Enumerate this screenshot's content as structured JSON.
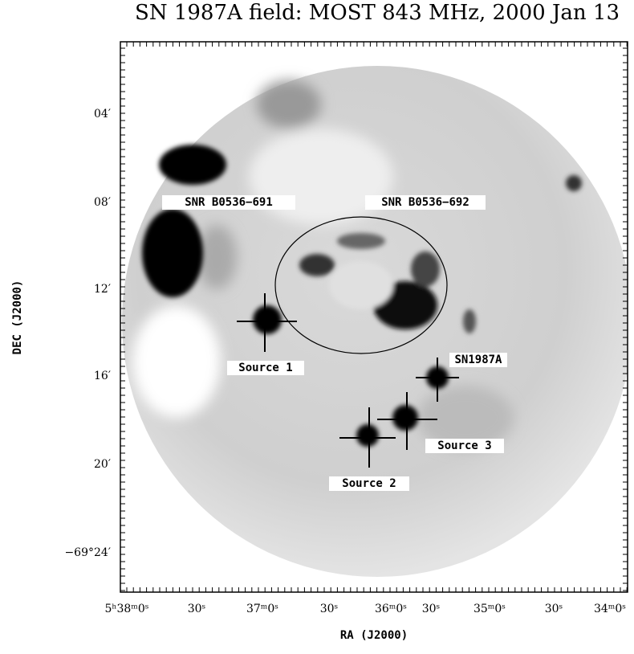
{
  "figure": {
    "title": "SN 1987A field: MOST 843 MHz, 2000 Jan 13",
    "x_axis": {
      "label": "RA (J2000)",
      "ticks": [
        "5ʰ38ᵐ0ˢ",
        "30ˢ",
        "37ᵐ0ˢ",
        "30ˢ",
        "36ᵐ0ˢ",
        "30ˢ",
        "35ᵐ0ˢ",
        "30ˢ",
        "34ᵐ0ˢ"
      ]
    },
    "y_axis": {
      "label": "DEC (J2000)",
      "ticks": [
        "04′",
        "08′",
        "12′",
        "16′",
        "20′",
        "−69°24′"
      ]
    },
    "annotations": [
      "SNR B0536−691",
      "SNR B0536−692",
      "Source 1",
      "SN1987A",
      "Source 3",
      "Source 2"
    ]
  }
}
